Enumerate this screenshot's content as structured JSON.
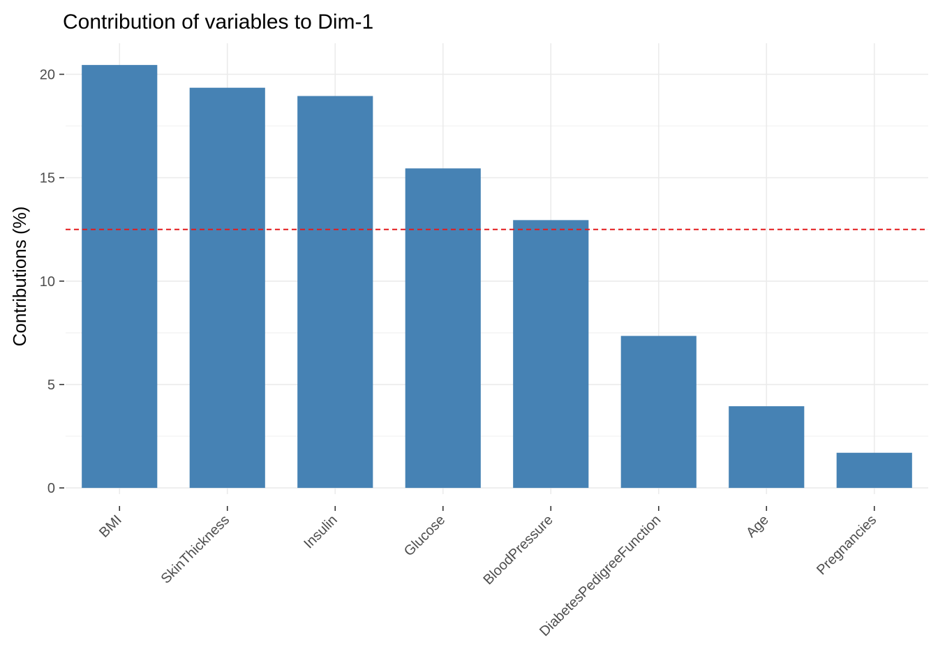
{
  "chart_data": {
    "type": "bar",
    "title": "Contribution of variables to Dim-1",
    "xlabel": "",
    "ylabel": "Contributions (%)",
    "categories": [
      "BMI",
      "SkinThickness",
      "Insulin",
      "Glucose",
      "BloodPressure",
      "DiabetesPedigreeFunction",
      "Age",
      "Pregnancies"
    ],
    "values": [
      20.45,
      19.35,
      18.95,
      15.45,
      12.95,
      7.35,
      3.95,
      1.7
    ],
    "ylim": [
      -0.3,
      21.5
    ],
    "yticks": [
      0,
      5,
      10,
      15,
      20
    ],
    "reference_line": {
      "value": 12.5,
      "color": "#e41a1c",
      "style": "dashed"
    },
    "bar_color": "#4682b4",
    "grid": true,
    "legend": "none"
  }
}
